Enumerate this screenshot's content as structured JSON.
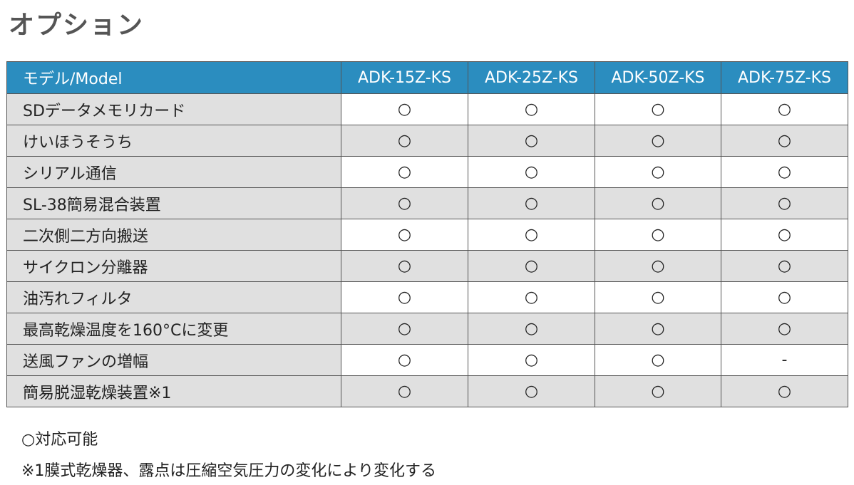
{
  "header": {
    "title": "オプション"
  },
  "table": {
    "columns": [
      "モデル/Model",
      "ADK-15Z-KS",
      "ADK-25Z-KS",
      "ADK-50Z-KS",
      "ADK-75Z-KS"
    ],
    "rows": [
      [
        "SDデータメモリカード",
        "○",
        "○",
        "○",
        "○"
      ],
      [
        "けいほうそうち",
        "○",
        "○",
        "○",
        "○"
      ],
      [
        "シリアル通信",
        "○",
        "○",
        "○",
        "○"
      ],
      [
        "SL-38簡易混合装置",
        "○",
        "○",
        "○",
        "○"
      ],
      [
        "二次側二方向搬送",
        "○",
        "○",
        "○",
        "○"
      ],
      [
        "サイクロン分離器",
        "○",
        "○",
        "○",
        "○"
      ],
      [
        "油汚れフィルタ",
        "○",
        "○",
        "○",
        "○"
      ],
      [
        "最高乾燥温度を160°Cに変更",
        "○",
        "○",
        "○",
        "○"
      ],
      [
        "送風ファンの増幅",
        "○",
        "○",
        "○",
        "-"
      ],
      [
        "簡易脱湿乾燥装置※1",
        "○",
        "○",
        "○",
        "○"
      ]
    ]
  },
  "notes": [
    "○対応可能",
    "※1膜式乾燥器、露点は圧縮空気圧力の変化により変化する"
  ]
}
